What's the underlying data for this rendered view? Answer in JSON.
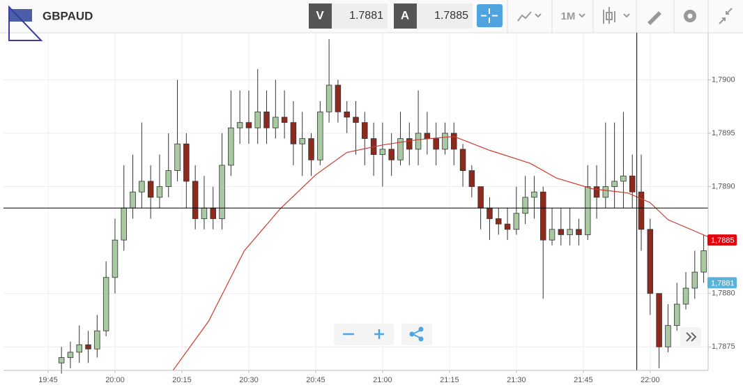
{
  "header": {
    "symbol": "GBPAUD",
    "bid_label": "V",
    "bid": 1.7881,
    "ask_label": "A",
    "ask": 1.7885,
    "timeframe": "1M"
  },
  "chart_data": {
    "type": "candlestick",
    "x": [
      "19:48",
      "19:50",
      "19:52",
      "19:54",
      "19:56",
      "19:58",
      "20:00",
      "20:02",
      "20:04",
      "20:06",
      "20:08",
      "20:10",
      "20:12",
      "20:14",
      "20:16",
      "20:18",
      "20:20",
      "20:22",
      "20:24",
      "20:26",
      "20:28",
      "20:30",
      "20:32",
      "20:34",
      "20:36",
      "20:38",
      "20:40",
      "20:42",
      "20:44",
      "20:46",
      "20:48",
      "20:50",
      "20:52",
      "20:54",
      "20:56",
      "20:58",
      "21:00",
      "21:02",
      "21:04",
      "21:06",
      "21:08",
      "21:10",
      "21:12",
      "21:14",
      "21:16",
      "21:18",
      "21:20",
      "21:22",
      "21:24",
      "21:26",
      "21:28",
      "21:30",
      "21:32",
      "21:34",
      "21:36",
      "21:38",
      "21:40",
      "21:42",
      "21:44",
      "21:46",
      "21:48",
      "21:50",
      "21:52",
      "21:54",
      "21:56",
      "21:58",
      "22:00",
      "22:02",
      "22:04",
      "22:06",
      "22:08",
      "22:10",
      "22:12"
    ],
    "open": [
      1.78735,
      1.7874,
      1.78745,
      1.78752,
      1.78748,
      1.78765,
      1.78815,
      1.7885,
      1.7888,
      1.78895,
      1.78905,
      1.7889,
      1.789,
      1.78915,
      1.7894,
      1.78905,
      1.7887,
      1.7888,
      1.7887,
      1.7892,
      1.78955,
      1.7896,
      1.78955,
      1.7897,
      1.78955,
      1.78965,
      1.7896,
      1.7894,
      1.78945,
      1.78925,
      1.7897,
      1.78995,
      1.7897,
      1.78965,
      1.7896,
      1.78945,
      1.7893,
      1.78935,
      1.78925,
      1.78945,
      1.78935,
      1.7895,
      1.78945,
      1.78935,
      1.7895,
      1.78935,
      1.78915,
      1.789,
      1.7888,
      1.7887,
      1.78865,
      1.7886,
      1.78875,
      1.7889,
      1.78895,
      1.7885,
      1.7886,
      1.78855,
      1.7886,
      1.78855,
      1.789,
      1.7889,
      1.789,
      1.78905,
      1.7891,
      1.78895,
      1.7886,
      1.788,
      1.7875,
      1.7877,
      1.7879,
      1.78805,
      1.7882
    ],
    "high": [
      1.7875,
      1.78755,
      1.7877,
      1.78765,
      1.7878,
      1.7883,
      1.7887,
      1.7892,
      1.7893,
      1.7896,
      1.7892,
      1.7893,
      1.7895,
      1.79,
      1.7895,
      1.7892,
      1.7891,
      1.789,
      1.7895,
      1.7899,
      1.7899,
      1.7899,
      1.7901,
      1.7899,
      1.79,
      1.7899,
      1.7898,
      1.7897,
      1.7895,
      1.7898,
      1.79038,
      1.79,
      1.7898,
      1.7898,
      1.7897,
      1.7896,
      1.7896,
      1.7895,
      1.7897,
      1.7896,
      1.7899,
      1.7897,
      1.7896,
      1.7896,
      1.7896,
      1.7894,
      1.7892,
      1.789,
      1.7889,
      1.7888,
      1.7888,
      1.789,
      1.7891,
      1.7891,
      1.789,
      1.7888,
      1.7888,
      1.7888,
      1.7887,
      1.7892,
      1.7892,
      1.7896,
      1.7896,
      1.7897,
      1.7893,
      1.7893,
      1.7887,
      1.788,
      1.7879,
      1.7881,
      1.7882,
      1.7884,
      1.78855
    ],
    "low": [
      1.78725,
      1.7873,
      1.78735,
      1.78735,
      1.7874,
      1.7876,
      1.788,
      1.7884,
      1.7887,
      1.7888,
      1.7887,
      1.7888,
      1.7889,
      1.78905,
      1.7888,
      1.7886,
      1.7886,
      1.7886,
      1.7886,
      1.7891,
      1.7894,
      1.7894,
      1.7894,
      1.7894,
      1.78945,
      1.78945,
      1.7892,
      1.7891,
      1.7891,
      1.7892,
      1.7896,
      1.7896,
      1.7895,
      1.7893,
      1.7892,
      1.7891,
      1.789,
      1.7891,
      1.7892,
      1.7892,
      1.7892,
      1.7893,
      1.7892,
      1.7893,
      1.7892,
      1.789,
      1.7889,
      1.7886,
      1.7885,
      1.78855,
      1.7885,
      1.78855,
      1.78865,
      1.7887,
      1.78795,
      1.78845,
      1.78845,
      1.78845,
      1.78845,
      1.7885,
      1.7887,
      1.7888,
      1.7888,
      1.7888,
      1.7888,
      1.7884,
      1.7878,
      1.7873,
      1.78745,
      1.78765,
      1.78785,
      1.78795,
      1.7881
    ],
    "close": [
      1.7874,
      1.78745,
      1.78752,
      1.78748,
      1.78765,
      1.78815,
      1.7885,
      1.7888,
      1.78895,
      1.78905,
      1.7889,
      1.789,
      1.78915,
      1.7894,
      1.78905,
      1.7887,
      1.7888,
      1.7887,
      1.7892,
      1.78955,
      1.7896,
      1.78955,
      1.7897,
      1.78955,
      1.78965,
      1.7896,
      1.7894,
      1.78945,
      1.78925,
      1.7897,
      1.78995,
      1.7897,
      1.78965,
      1.7896,
      1.78945,
      1.7893,
      1.78935,
      1.78925,
      1.78945,
      1.78935,
      1.7895,
      1.78945,
      1.78935,
      1.7895,
      1.78935,
      1.78915,
      1.789,
      1.7888,
      1.7887,
      1.78865,
      1.7886,
      1.78875,
      1.7889,
      1.78895,
      1.7885,
      1.7886,
      1.78855,
      1.7886,
      1.78855,
      1.789,
      1.7889,
      1.789,
      1.78905,
      1.7891,
      1.78895,
      1.7886,
      1.788,
      1.7875,
      1.7877,
      1.7879,
      1.78805,
      1.7882,
      1.7884
    ],
    "up_color": "#a9c9a2",
    "down_color": "#8e2a1d",
    "ma": {
      "x": [
        "20:13",
        "20:21",
        "20:29",
        "20:37",
        "20:45",
        "20:52",
        "21:00",
        "21:08",
        "21:16",
        "21:24",
        "21:33",
        "21:39",
        "21:47",
        "21:55",
        "22:00",
        "22:04",
        "22:13"
      ],
      "values": [
        1.78728,
        1.78774,
        1.7884,
        1.78879,
        1.78911,
        1.78932,
        1.78939,
        1.78944,
        1.78947,
        1.78934,
        1.78922,
        1.78908,
        1.78898,
        1.78894,
        1.78885,
        1.78869,
        1.78853
      ],
      "color": "#d03a2c"
    },
    "xlim": [
      "19:35",
      "22:13"
    ],
    "xticks": [
      "19:45",
      "20:00",
      "20:15",
      "20:30",
      "20:45",
      "21:00",
      "21:15",
      "21:30",
      "21:45",
      "22:00"
    ],
    "ylim": [
      1.78728,
      1.79044
    ],
    "yticks": [
      {
        "value": 1.7875,
        "label": "1,7875"
      },
      {
        "value": 1.788,
        "label": "1,7880"
      },
      {
        "value": 1.789,
        "label": "1,7890"
      },
      {
        "value": 1.7895,
        "label": "1,7895"
      },
      {
        "value": 1.79,
        "label": "1,7900"
      }
    ],
    "grid": true,
    "price_tags": [
      {
        "value": 1.7885,
        "label": "1,7885",
        "color": "#e8000b"
      },
      {
        "value": 1.7881,
        "label": "1,7881",
        "color": "#5bb2d8"
      }
    ],
    "crosshair": {
      "x": "21:57",
      "y": 1.7888
    }
  }
}
